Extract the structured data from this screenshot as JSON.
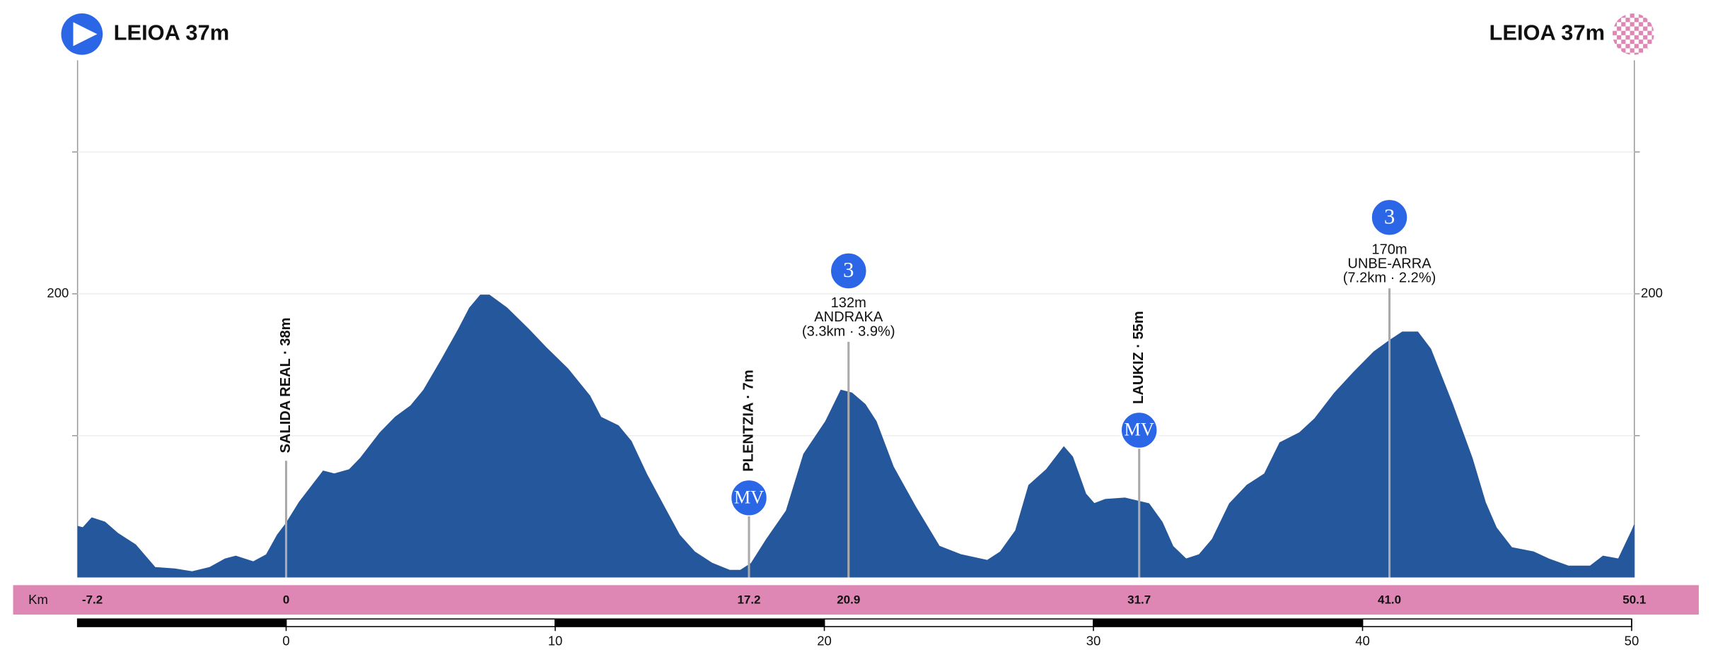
{
  "header": {
    "start": "LEIOA 37m",
    "finish": "LEIOA 37m"
  },
  "chart_data": {
    "type": "area",
    "x": [
      -7.75,
      -7.55,
      -7.22,
      -6.74,
      -6.25,
      -5.6,
      -4.87,
      -4.14,
      -3.49,
      -2.84,
      -2.27,
      -1.87,
      -1.22,
      -0.73,
      -0.32,
      0,
      0.49,
      1.38,
      1.79,
      2.35,
      2.76,
      3.49,
      4.06,
      4.63,
      5.11,
      5.76,
      6.41,
      6.82,
      7.22,
      7.55,
      8.2,
      9.01,
      9.66,
      10.47,
      11.28,
      11.69,
      12.34,
      12.82,
      13.39,
      14.04,
      14.61,
      15.18,
      15.83,
      16.48,
      16.88,
      17.29,
      17.86,
      18.59,
      19.24,
      20.05,
      20.62,
      21.02,
      21.51,
      21.92,
      22.56,
      23.38,
      24.27,
      25.08,
      26.06,
      26.54,
      27.11,
      27.6,
      28.25,
      28.9,
      29.22,
      29.71,
      30.03,
      30.44,
      31.17,
      32.06,
      32.55,
      32.95,
      33.44,
      33.93,
      34.42,
      35.06,
      35.71,
      36.36,
      36.93,
      37.66,
      38.23,
      38.96,
      39.69,
      40.42,
      41.0,
      41.48,
      42.05,
      42.53,
      43.34,
      44.07,
      44.56,
      44.97,
      45.54,
      46.35,
      46.92,
      47.65,
      48.46,
      48.94,
      49.51,
      50.01,
      50.1
    ],
    "values": [
      36,
      35,
      42,
      39,
      31,
      23,
      7,
      6,
      4,
      7,
      13,
      15,
      11,
      16,
      30,
      38,
      53,
      75,
      73,
      76,
      84,
      102,
      113,
      121,
      132,
      153,
      175,
      190,
      199,
      199,
      190,
      175,
      162,
      147,
      128,
      113,
      107,
      96,
      73,
      50,
      30,
      18,
      10,
      5,
      5,
      10,
      27,
      47,
      87,
      110,
      132,
      130,
      122,
      110,
      78,
      50,
      22,
      16,
      12,
      18,
      33,
      65,
      76,
      92,
      85,
      59,
      52,
      55,
      56,
      52,
      39,
      22,
      13,
      16,
      27,
      52,
      65,
      73,
      95,
      102,
      112,
      130,
      145,
      159,
      167,
      173,
      173,
      161,
      122,
      84,
      53,
      35,
      21,
      18,
      13,
      8,
      8,
      15,
      13,
      33,
      37
    ],
    "color": "#24579b",
    "xlim": [
      -7.75,
      50.1
    ],
    "ylim": [
      0,
      362
    ],
    "yticks": [
      200
    ],
    "minor_yticks": [
      100,
      300
    ],
    "grid": true,
    "xticks": [
      0,
      10,
      20,
      30,
      40,
      50
    ],
    "km_label": "Km",
    "km_marks": [
      -7.2,
      0,
      17.2,
      20.9,
      31.7,
      {
        "value": 41,
        "label": "41.0"
      },
      50.1
    ],
    "points": [
      {
        "km": 0,
        "label": "SALIDA REAL · 38m"
      },
      {
        "km": 17.2,
        "label": "PLENTZIA · 7m",
        "marker": "MV"
      },
      {
        "km": 20.9,
        "marker": "3",
        "elevation": "132m",
        "name": "ANDRAKA",
        "detail": "(3.3km · 3.9%)"
      },
      {
        "km": 31.7,
        "label": "LAUKIZ · 55m",
        "marker": "MV"
      },
      {
        "km": 41.0,
        "marker": "3",
        "elevation": "170m",
        "name": "UNBE-ARRA",
        "detail": "(7.2km · 2.2%)"
      }
    ]
  }
}
